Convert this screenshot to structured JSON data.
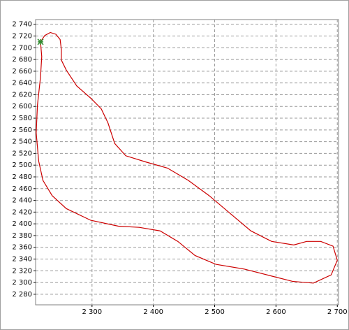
{
  "chart_data": {
    "type": "line",
    "x": [
      2216,
      2223,
      2232,
      2241,
      2248,
      2250,
      2250,
      2258,
      2275,
      2298,
      2315,
      2326,
      2337,
      2355,
      2389,
      2423,
      2457,
      2491,
      2525,
      2559,
      2593,
      2629,
      2650,
      2673,
      2693,
      2700,
      2690,
      2661,
      2627,
      2593,
      2548,
      2502,
      2468,
      2440,
      2411,
      2377,
      2343,
      2298,
      2258,
      2235,
      2220,
      2213,
      2209,
      2211,
      2216,
      2218,
      2216
    ],
    "series": [
      {
        "color": "#cc0000",
        "values": [
          2710,
          2721,
          2726,
          2723,
          2714,
          2697,
          2679,
          2662,
          2635,
          2614,
          2596,
          2572,
          2537,
          2516,
          2505,
          2495,
          2474,
          2448,
          2418,
          2388,
          2370,
          2364,
          2370,
          2370,
          2362,
          2338,
          2313,
          2299,
          2302,
          2311,
          2323,
          2331,
          2346,
          2370,
          2388,
          2394,
          2396,
          2406,
          2426,
          2448,
          2474,
          2507,
          2555,
          2602,
          2650,
          2685,
          2710
        ]
      }
    ],
    "start_point": {
      "x": 2216,
      "y": 2710,
      "color": "#2e8b2e"
    },
    "xlim": [
      2208,
      2702
    ],
    "ylim": [
      2262,
      2748
    ],
    "xticks": [
      {
        "value": 2300,
        "label": "2 300"
      },
      {
        "value": 2400,
        "label": "2 400"
      },
      {
        "value": 2500,
        "label": "2 500"
      },
      {
        "value": 2600,
        "label": "2 600"
      },
      {
        "value": 2700,
        "label": "2 700"
      }
    ],
    "yticks": [
      {
        "value": 2280,
        "label": "2 280"
      },
      {
        "value": 2300,
        "label": "2 300"
      },
      {
        "value": 2320,
        "label": "2 320"
      },
      {
        "value": 2340,
        "label": "2 340"
      },
      {
        "value": 2360,
        "label": "2 360"
      },
      {
        "value": 2380,
        "label": "2 380"
      },
      {
        "value": 2400,
        "label": "2 400"
      },
      {
        "value": 2420,
        "label": "2 420"
      },
      {
        "value": 2440,
        "label": "2 440"
      },
      {
        "value": 2460,
        "label": "2 460"
      },
      {
        "value": 2480,
        "label": "2 480"
      },
      {
        "value": 2500,
        "label": "2 500"
      },
      {
        "value": 2520,
        "label": "2 520"
      },
      {
        "value": 2540,
        "label": "2 540"
      },
      {
        "value": 2560,
        "label": "2 560"
      },
      {
        "value": 2580,
        "label": "2 580"
      },
      {
        "value": 2600,
        "label": "2 600"
      },
      {
        "value": 2620,
        "label": "2 620"
      },
      {
        "value": 2640,
        "label": "2 640"
      },
      {
        "value": 2660,
        "label": "2 660"
      },
      {
        "value": 2680,
        "label": "2 680"
      },
      {
        "value": 2700,
        "label": "2 700"
      },
      {
        "value": 2720,
        "label": "2 720"
      },
      {
        "value": 2740,
        "label": "2 740"
      }
    ],
    "grid": true
  }
}
